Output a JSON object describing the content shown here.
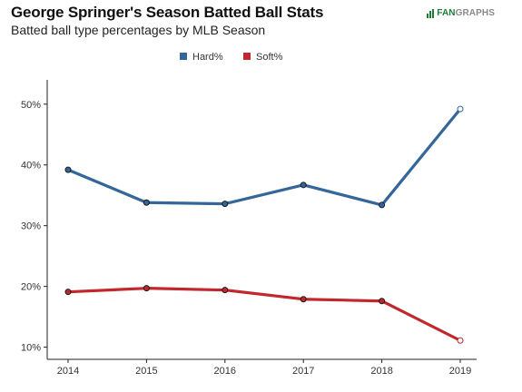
{
  "header": {
    "title": "George Springer's Season Batted Ball Stats",
    "subtitle": "Batted ball type percentages by MLB Season",
    "logo_prefix": "FAN",
    "logo_suffix": "GRAPHS"
  },
  "colors": {
    "hard": "#336699",
    "soft": "#c0282e",
    "axis": "#222222",
    "marker_fill": "#ffffff"
  },
  "chart_data": {
    "type": "line",
    "title": "George Springer's Season Batted Ball Stats",
    "subtitle": "Batted ball type percentages by MLB Season",
    "x": [
      "2014",
      "2015",
      "2016",
      "2017",
      "2018",
      "2019"
    ],
    "series": [
      {
        "name": "Hard%",
        "color": "#336699",
        "values": [
          39.2,
          33.8,
          33.6,
          36.7,
          33.4,
          49.2
        ]
      },
      {
        "name": "Soft%",
        "color": "#c0282e",
        "values": [
          19.1,
          19.7,
          19.4,
          17.9,
          17.6,
          11.1
        ]
      }
    ],
    "ylim": [
      8,
      54
    ],
    "yticks": [
      10,
      20,
      30,
      40,
      50
    ],
    "ytick_labels": [
      "10%",
      "20%",
      "30%",
      "40%",
      "50%"
    ],
    "xlabel": "",
    "ylabel": "",
    "legend_position": "top-center",
    "grid": false
  }
}
